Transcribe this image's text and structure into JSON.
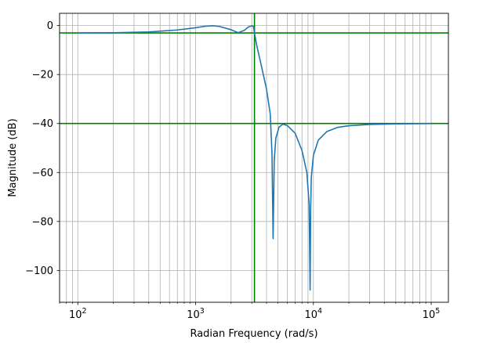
{
  "chart_data": {
    "type": "line",
    "title": "",
    "xlabel": "Radian Frequency (rad/s)",
    "ylabel": "Magnitude (dB)",
    "xscale": "log",
    "xlim": [
      70,
      140000
    ],
    "ylim": [
      -113,
      5
    ],
    "grid": "both (major and minor)",
    "x_tick_labels": [
      {
        "base": "10",
        "exp": "2",
        "value": 100
      },
      {
        "base": "10",
        "exp": "3",
        "value": 1000
      },
      {
        "base": "10",
        "exp": "4",
        "value": 10000
      },
      {
        "base": "10",
        "exp": "5",
        "value": 100000
      }
    ],
    "y_ticks": [
      0,
      -20,
      -40,
      -60,
      -80,
      -100
    ],
    "y_tick_labels": [
      "0",
      "−20",
      "−40",
      "−60",
      "−80",
      "−100"
    ],
    "series": [
      {
        "color": "#1f77b4",
        "x": [
          100,
          200,
          400,
          700,
          1000,
          1200,
          1400,
          1600,
          2000,
          2300,
          2600,
          2800,
          3000,
          3100,
          3160,
          3300,
          3600,
          4000,
          4300,
          4450,
          4550,
          4650,
          4800,
          5100,
          5500,
          6000,
          7000,
          8000,
          8800,
          9200,
          9380,
          9480,
          9600,
          10000,
          11000,
          13000,
          16000,
          20000,
          30000,
          50000,
          100000
        ],
        "y": [
          -3.0,
          -2.95,
          -2.6,
          -1.8,
          -0.9,
          -0.3,
          -0.05,
          -0.4,
          -1.7,
          -2.9,
          -1.9,
          -0.6,
          -0.1,
          -0.3,
          -3.0,
          -8,
          -16,
          -26,
          -36,
          -52,
          -87,
          -55,
          -46,
          -41.5,
          -40.3,
          -40.8,
          -44,
          -51,
          -60,
          -73,
          -108,
          -75,
          -62,
          -53,
          -46.8,
          -43.3,
          -41.6,
          -40.9,
          -40.4,
          -40.15,
          -40.05
        ]
      }
    ],
    "reference_lines": [
      {
        "orientation": "horizontal",
        "y": -3,
        "color": "#008000"
      },
      {
        "orientation": "horizontal",
        "y": -40,
        "color": "#008000"
      },
      {
        "orientation": "vertical",
        "x": 3160,
        "color": "#008000"
      }
    ]
  }
}
